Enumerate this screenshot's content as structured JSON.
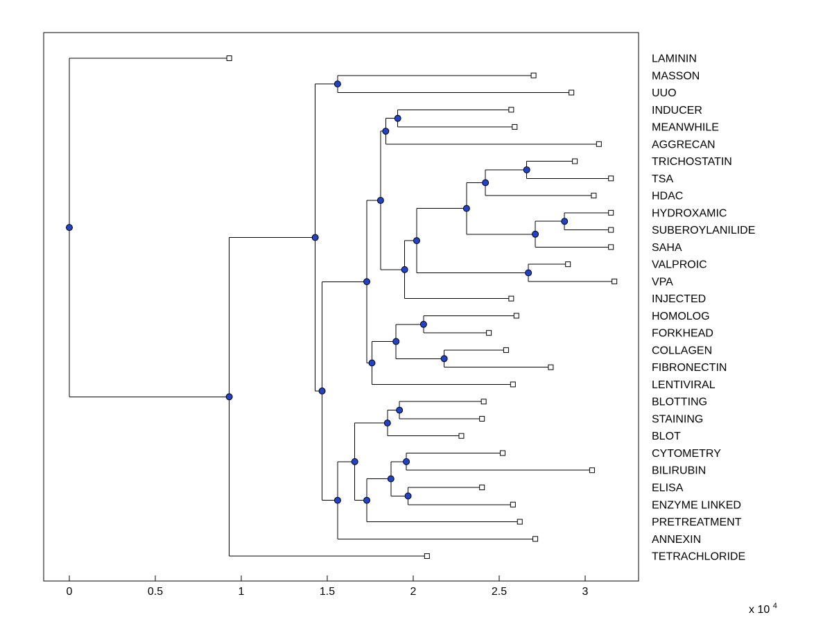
{
  "figure": {
    "background_color": "#ffffff"
  },
  "chart_data": {
    "type": "dendrogram",
    "orientation": "left-to-right",
    "title": "",
    "x_axis": {
      "ticks": [
        0,
        0.5,
        1,
        1.5,
        2,
        2.5,
        3
      ],
      "tick_labels": [
        "0",
        "0.5",
        "1",
        "1.5",
        "2",
        "2.5",
        "3"
      ],
      "range": [
        -0.149,
        3.311
      ],
      "unit_multiplier": 10000,
      "exponent_label": {
        "text": "x 10",
        "exponent": "4"
      }
    },
    "style": {
      "line_color": "#000000",
      "branch_marker_fill": "#2143c8",
      "branch_marker_stroke": "#000000",
      "leaf_marker_fill": "#ffffff",
      "leaf_marker_stroke": "#000000",
      "label_color": "#000000"
    },
    "leaves": [
      {
        "label": "LAMININ",
        "x": 0.93
      },
      {
        "label": "MASSON",
        "x": 2.7
      },
      {
        "label": "UUO",
        "x": 2.92
      },
      {
        "label": "INDUCER",
        "x": 2.57
      },
      {
        "label": "MEANWHILE",
        "x": 2.59
      },
      {
        "label": "AGGRECAN",
        "x": 3.08
      },
      {
        "label": "TRICHOSTATIN",
        "x": 2.94
      },
      {
        "label": "TSA",
        "x": 3.15
      },
      {
        "label": "HDAC",
        "x": 3.05
      },
      {
        "label": "HYDROXAMIC",
        "x": 3.15
      },
      {
        "label": "SUBEROYLANILIDE",
        "x": 3.15
      },
      {
        "label": "SAHA",
        "x": 3.15
      },
      {
        "label": "VALPROIC",
        "x": 2.9
      },
      {
        "label": "VPA",
        "x": 3.17
      },
      {
        "label": "INJECTED",
        "x": 2.57
      },
      {
        "label": "HOMOLOG",
        "x": 2.6
      },
      {
        "label": "FORKHEAD",
        "x": 2.44
      },
      {
        "label": "COLLAGEN",
        "x": 2.54
      },
      {
        "label": "FIBRONECTIN",
        "x": 2.8
      },
      {
        "label": "LENTIVIRAL",
        "x": 2.58
      },
      {
        "label": "BLOTTING",
        "x": 2.41
      },
      {
        "label": "STAINING",
        "x": 2.4
      },
      {
        "label": "BLOT",
        "x": 2.28
      },
      {
        "label": "CYTOMETRY",
        "x": 2.52
      },
      {
        "label": "BILIRUBIN",
        "x": 3.04
      },
      {
        "label": "ELISA",
        "x": 2.4
      },
      {
        "label": "ENZYME LINKED",
        "x": 2.58
      },
      {
        "label": "PRETREATMENT",
        "x": 2.62
      },
      {
        "label": "ANNEXIN",
        "x": 2.71
      },
      {
        "label": "TETRACHLORIDE",
        "x": 2.08
      }
    ],
    "tree": {
      "x": 0.0,
      "c": [
        "LAMININ",
        {
          "x": 0.93,
          "c": [
            {
              "x": 1.43,
              "c": [
                {
                  "x": 1.56,
                  "c": [
                    "MASSON",
                    "UUO"
                  ]
                },
                {
                  "x": 1.47,
                  "c": [
                    {
                      "x": 1.73,
                      "c": [
                        {
                          "x": 1.81,
                          "c": [
                            {
                              "x": 1.84,
                              "c": [
                                {
                                  "x": 1.91,
                                  "c": [
                                    "INDUCER",
                                    "MEANWHILE"
                                  ]
                                },
                                "AGGRECAN"
                              ]
                            },
                            {
                              "x": 1.95,
                              "c": [
                                {
                                  "x": 2.02,
                                  "c": [
                                    {
                                      "x": 2.31,
                                      "c": [
                                        {
                                          "x": 2.42,
                                          "c": [
                                            {
                                              "x": 2.66,
                                              "c": [
                                                "TRICHOSTATIN",
                                                "TSA"
                                              ]
                                            },
                                            "HDAC"
                                          ]
                                        },
                                        {
                                          "x": 2.71,
                                          "c": [
                                            {
                                              "x": 2.88,
                                              "c": [
                                                "HYDROXAMIC",
                                                "SUBEROYLANILIDE"
                                              ]
                                            },
                                            "SAHA"
                                          ]
                                        }
                                      ]
                                    },
                                    {
                                      "x": 2.67,
                                      "c": [
                                        "VALPROIC",
                                        "VPA"
                                      ]
                                    }
                                  ]
                                },
                                "INJECTED"
                              ]
                            }
                          ]
                        },
                        {
                          "x": 1.76,
                          "c": [
                            {
                              "x": 1.9,
                              "c": [
                                {
                                  "x": 2.06,
                                  "c": [
                                    "HOMOLOG",
                                    "FORKHEAD"
                                  ]
                                },
                                {
                                  "x": 2.18,
                                  "c": [
                                    "COLLAGEN",
                                    "FIBRONECTIN"
                                  ]
                                }
                              ]
                            },
                            "LENTIVIRAL"
                          ]
                        }
                      ]
                    },
                    {
                      "x": 1.56,
                      "c": [
                        {
                          "x": 1.66,
                          "c": [
                            {
                              "x": 1.85,
                              "c": [
                                {
                                  "x": 1.92,
                                  "c": [
                                    "BLOTTING",
                                    "STAINING"
                                  ]
                                },
                                "BLOT"
                              ]
                            },
                            {
                              "x": 1.73,
                              "c": [
                                {
                                  "x": 1.87,
                                  "c": [
                                    {
                                      "x": 1.96,
                                      "c": [
                                        "CYTOMETRY",
                                        "BILIRUBIN"
                                      ]
                                    },
                                    {
                                      "x": 1.97,
                                      "c": [
                                        "ELISA",
                                        "ENZYME LINKED"
                                      ]
                                    }
                                  ]
                                },
                                "PRETREATMENT"
                              ]
                            }
                          ]
                        },
                        "ANNEXIN"
                      ]
                    }
                  ]
                }
              ]
            },
            "TETRACHLORIDE"
          ]
        }
      ]
    }
  }
}
